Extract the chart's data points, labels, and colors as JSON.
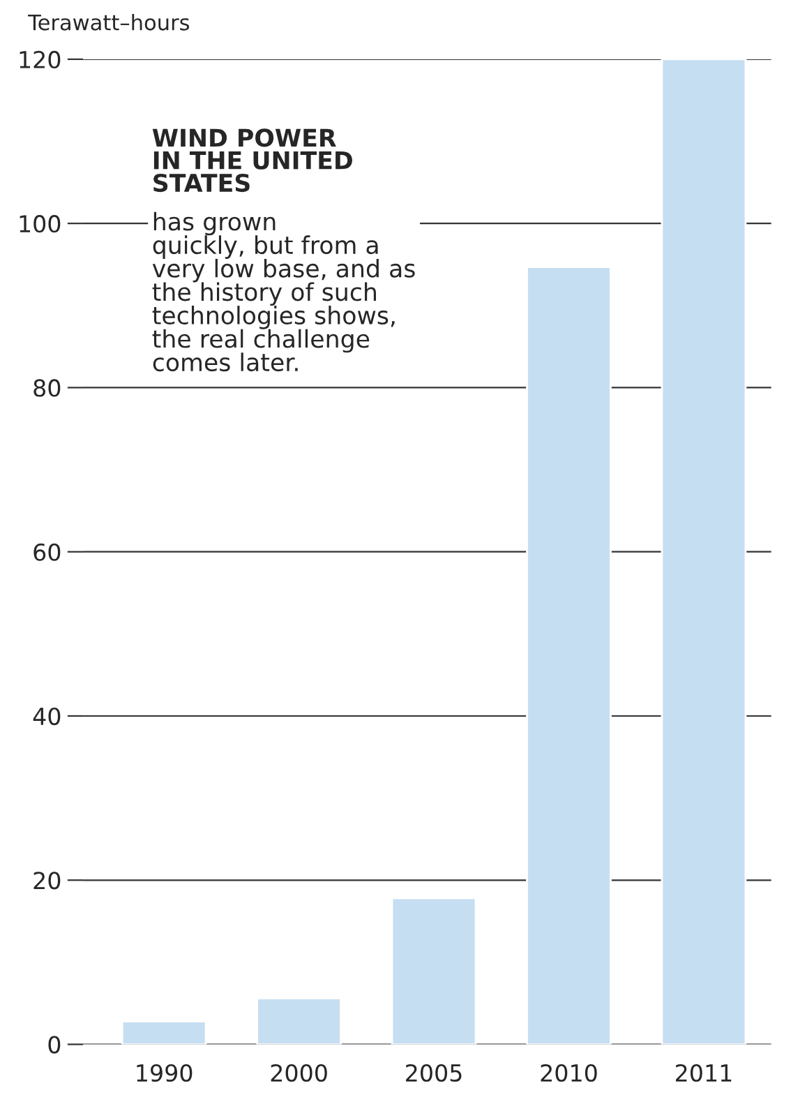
{
  "chart_data": {
    "type": "bar",
    "ylabel": "Terawatt–hours",
    "categories": [
      "1990",
      "2000",
      "2005",
      "2010",
      "2011"
    ],
    "values": [
      2.8,
      5.6,
      17.8,
      94.7,
      120
    ],
    "color": "#c6def2",
    "ylim": [
      0,
      120
    ],
    "yticks": [
      0,
      20,
      40,
      60,
      80,
      100,
      120
    ],
    "grid": "y",
    "annotations": [
      "WIND POWER\nIN THE UNITED\nSTATES",
      "has grown\nquickly, but from a\nvery low base, and as\nthe history of such\ntechnologies shows,\nthe real challenge\ncomes later."
    ]
  }
}
